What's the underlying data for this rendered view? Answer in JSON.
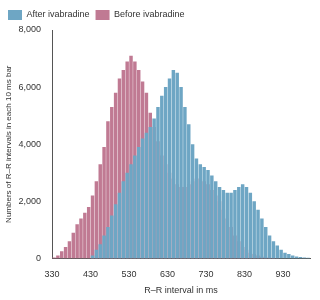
{
  "chart_data": {
    "type": "histogram",
    "x_label": "R–R interval in ms",
    "y_label": "Numbers of R–R intervals in each 10 ms bar",
    "bins": [
      330,
      340,
      350,
      360,
      370,
      380,
      390,
      400,
      410,
      420,
      430,
      440,
      450,
      460,
      470,
      480,
      490,
      500,
      510,
      520,
      530,
      540,
      550,
      560,
      570,
      580,
      590,
      600,
      610,
      620,
      630,
      640,
      650,
      660,
      670,
      680,
      690,
      700,
      710,
      720,
      730,
      740,
      750,
      760,
      770,
      780,
      790,
      800,
      810,
      820,
      830,
      840,
      850,
      860,
      870,
      880,
      890,
      900,
      910,
      920,
      930,
      940,
      950,
      960,
      970,
      980,
      990,
      1000
    ],
    "series": [
      {
        "name": "Before ivabradine",
        "color": "#c07a93",
        "values": [
          30,
          100,
          250,
          400,
          600,
          900,
          1200,
          1400,
          1600,
          1800,
          2200,
          2700,
          3300,
          3900,
          4800,
          5300,
          5800,
          6300,
          6600,
          6900,
          7100,
          6900,
          6600,
          6200,
          5800,
          5100,
          4600,
          4100,
          3600,
          3300,
          3000,
          2800,
          2600,
          2500,
          2500,
          2600,
          2700,
          2800,
          2800,
          2700,
          2600,
          2400,
          2200,
          2000,
          1700,
          1400,
          1100,
          800,
          600,
          400,
          300,
          200,
          150,
          100,
          60,
          40,
          20,
          10,
          5,
          0,
          0,
          0,
          0,
          0,
          0,
          0,
          0
        ]
      },
      {
        "name": "After ivabradine",
        "color": "#6ea6c4",
        "values": [
          0,
          0,
          0,
          0,
          0,
          0,
          0,
          0,
          0,
          0,
          100,
          300,
          500,
          800,
          1100,
          1500,
          1900,
          2300,
          2700,
          3000,
          3300,
          3600,
          3900,
          4200,
          4400,
          4600,
          4900,
          5300,
          5700,
          6000,
          6300,
          6600,
          6500,
          6000,
          5300,
          4700,
          4000,
          3500,
          3300,
          3200,
          3100,
          2900,
          2700,
          2500,
          2400,
          2300,
          2300,
          2400,
          2500,
          2600,
          2500,
          2300,
          2000,
          1700,
          1400,
          1100,
          800,
          600,
          450,
          300,
          200,
          150,
          100,
          70,
          50,
          30,
          20
        ]
      }
    ],
    "xlim": [
      330,
      1000
    ],
    "xticks": [
      330,
      430,
      530,
      630,
      730,
      830,
      930
    ],
    "ylim": [
      0,
      8000
    ],
    "yticks": [
      0,
      {
        "value": 2000,
        "label": "2,000"
      },
      {
        "value": 4000,
        "label": "4,000"
      },
      {
        "value": 6000,
        "label": "6,000"
      },
      {
        "value": 8000,
        "label": "8,000"
      }
    ],
    "grid": false,
    "legend": "top-left"
  }
}
